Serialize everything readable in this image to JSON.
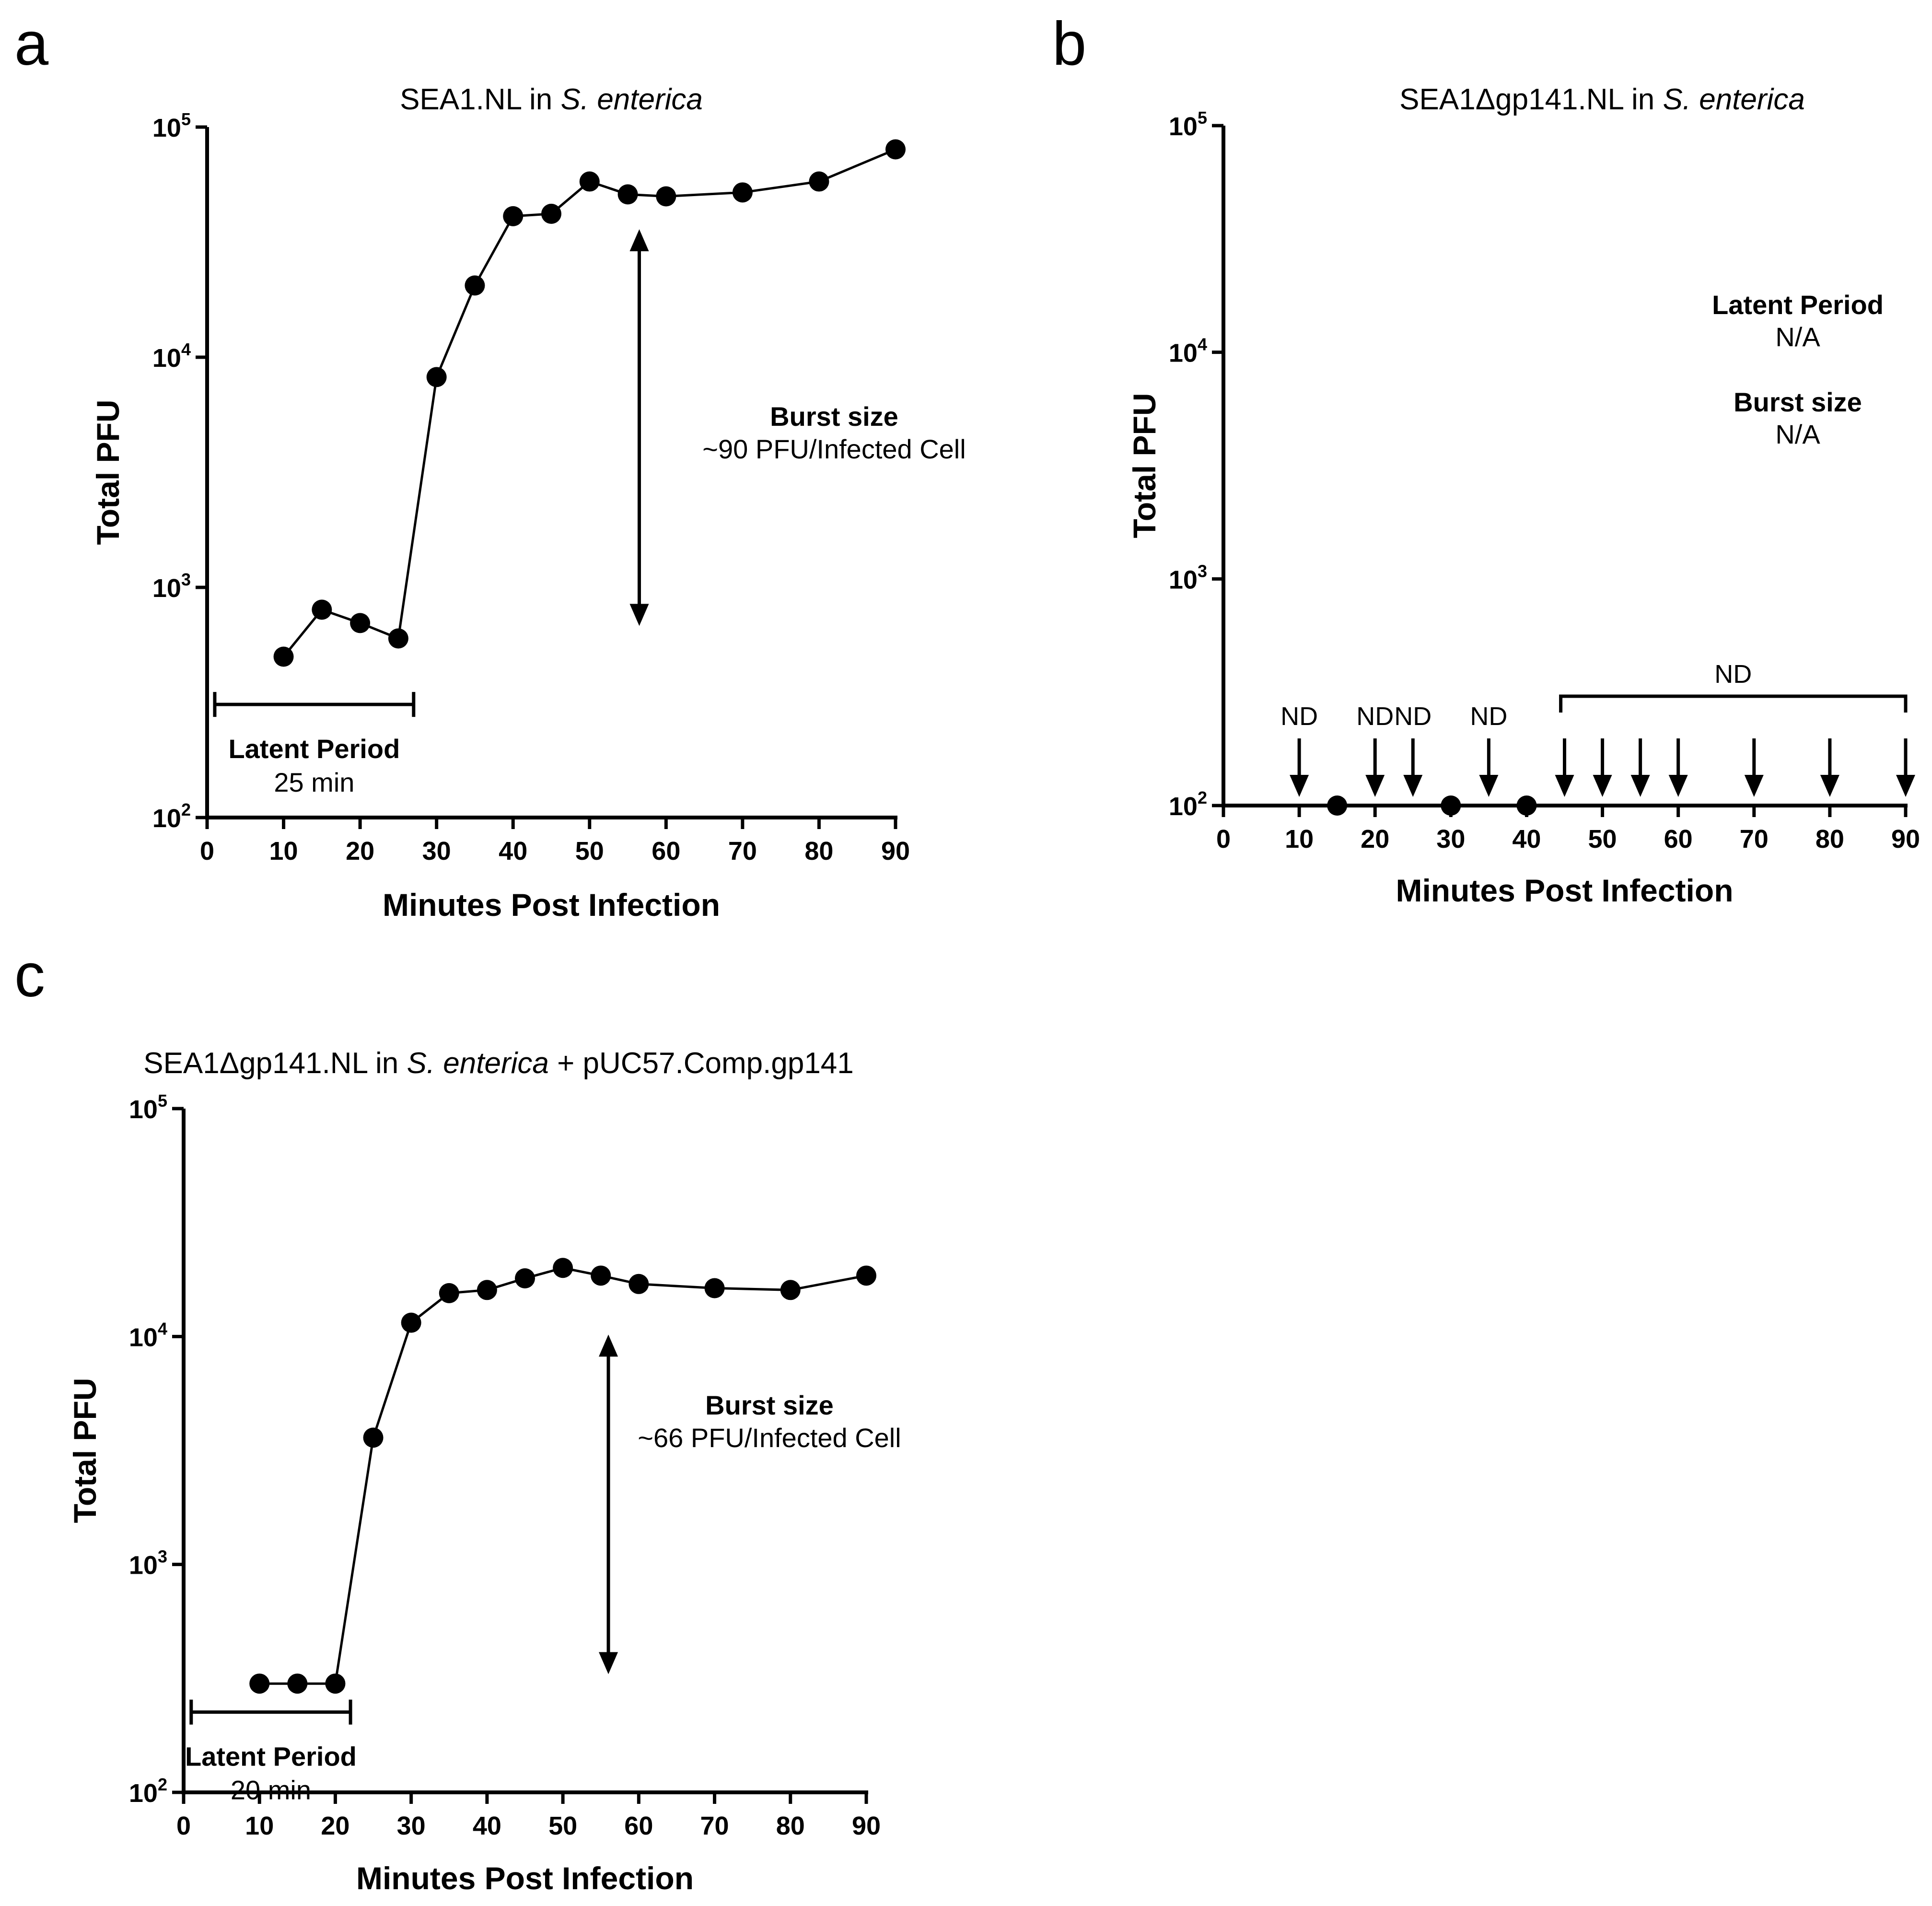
{
  "chart_data": [
    {
      "panel": "a",
      "type": "line",
      "title": "SEA1.NL in S. enterica",
      "title_plain": "SEA1.NL in ",
      "title_italic": "S. enterica",
      "title_suffix": "",
      "xlabel": "Minutes Post Infection",
      "ylabel": "Total PFU",
      "y_scale": "log",
      "xlim": [
        0,
        90
      ],
      "ylim": [
        100,
        100000
      ],
      "x_ticks": [
        0,
        10,
        20,
        30,
        40,
        50,
        60,
        70,
        80,
        90
      ],
      "y_tick_exponents": [
        "2",
        "3",
        "4",
        "5"
      ],
      "series": [
        {
          "x": [
            10,
            15,
            20,
            25,
            30,
            35,
            40,
            45,
            50,
            55,
            60,
            70,
            80,
            90
          ],
          "y": [
            500,
            800,
            700,
            600,
            8200,
            20500,
            41000,
            42000,
            58000,
            51000,
            50000,
            52000,
            58000,
            80000
          ]
        }
      ],
      "latent": {
        "label": "Latent Period",
        "value": "25 min",
        "x_range": [
          1,
          27
        ],
        "y": 310
      },
      "burst": {
        "label": "Burst size",
        "value": "~90 PFU/Infected Cell",
        "x": 56.5,
        "y_range": [
          680,
          36000
        ]
      }
    },
    {
      "panel": "b",
      "type": "scatter",
      "title": "SEA1Δgp141.NL in S. enterica",
      "title_plain": "SEA1Δgp141.NL in ",
      "title_italic": "S. enterica",
      "title_suffix": "",
      "xlabel": "Minutes Post Infection",
      "ylabel": "Total PFU",
      "y_scale": "log",
      "xlim": [
        0,
        90
      ],
      "ylim": [
        100,
        100000
      ],
      "x_ticks": [
        0,
        10,
        20,
        30,
        40,
        50,
        60,
        70,
        80,
        90
      ],
      "y_tick_exponents": [
        "2",
        "3",
        "4",
        "5"
      ],
      "series": [
        {
          "x": [
            15,
            30,
            40
          ],
          "y": [
            100,
            100,
            100
          ]
        }
      ],
      "not_detected_x": [
        10,
        20,
        25,
        35,
        45,
        50,
        55,
        60,
        70,
        80,
        90
      ],
      "nd_label": "ND",
      "nd_single_labels_x": [
        10,
        20,
        25,
        35
      ],
      "nd_bracket_range": [
        44.5,
        90
      ],
      "annotations": {
        "latent_label": "Latent Period",
        "latent_value": "N/A",
        "burst_label": "Burst size",
        "burst_value": "N/A"
      }
    },
    {
      "panel": "c",
      "type": "line",
      "title": "SEA1Δgp141.NL in S. enterica + pUC57.Comp.gp141",
      "title_plain": "SEA1Δgp141.NL in ",
      "title_italic": "S. enterica",
      "title_suffix": " + pUC57.Comp.gp141",
      "xlabel": "Minutes Post Infection",
      "ylabel": "Total PFU",
      "y_scale": "log",
      "xlim": [
        0,
        90
      ],
      "ylim": [
        100,
        100000
      ],
      "x_ticks": [
        0,
        10,
        20,
        30,
        40,
        50,
        60,
        70,
        80,
        90
      ],
      "y_tick_exponents": [
        "2",
        "3",
        "4",
        "5"
      ],
      "series": [
        {
          "x": [
            10,
            15,
            20,
            25,
            30,
            35,
            40,
            45,
            50,
            55,
            60,
            70,
            80,
            90
          ],
          "y": [
            300,
            300,
            300,
            3600,
            11500,
            15500,
            16000,
            18000,
            20000,
            18500,
            17000,
            16300,
            16000,
            18500
          ]
        }
      ],
      "latent": {
        "label": "Latent Period",
        "value": "20 min",
        "x_range": [
          1,
          22
        ],
        "y": 225
      },
      "burst": {
        "label": "Burst size",
        "value": "~66 PFU/Infected Cell",
        "x": 56,
        "y_range": [
          330,
          10200
        ]
      }
    }
  ],
  "panel_letters": [
    "a",
    "b",
    "c"
  ]
}
